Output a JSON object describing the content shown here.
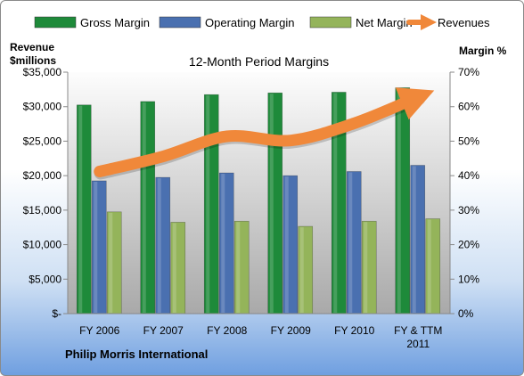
{
  "chart_data": {
    "type": "bar",
    "title": "12-Month Period Margins",
    "categories": [
      "FY 2006",
      "FY 2007",
      "FY 2008",
      "FY 2009",
      "FY 2010",
      "FY & TTM 2011"
    ],
    "series": [
      {
        "name": "Gross Margin",
        "axis": "right",
        "color": "#1e8a3a",
        "values": [
          60.5,
          61.5,
          63.5,
          64.0,
          64.2,
          65.5
        ]
      },
      {
        "name": "Operating Margin",
        "axis": "right",
        "color": "#4a70b0",
        "values": [
          38.5,
          39.5,
          40.8,
          40.0,
          41.2,
          43.0
        ]
      },
      {
        "name": "Net Margin",
        "axis": "right",
        "color": "#94b45a",
        "values": [
          29.5,
          26.5,
          26.8,
          25.3,
          26.8,
          27.5
        ]
      },
      {
        "name": "Revenues",
        "type": "line",
        "axis": "left",
        "color": "#f0883a",
        "values": [
          20600,
          22800,
          25700,
          25100,
          27600,
          31400
        ]
      }
    ],
    "ylabel_left": [
      "Revenue",
      "$millions"
    ],
    "ylabel_right": "Margin %",
    "ylim_left": [
      0,
      35000
    ],
    "ylim_right": [
      0,
      70
    ],
    "yticks_left": [
      "$-",
      "$5,000",
      "$10,000",
      "$15,000",
      "$20,000",
      "$25,000",
      "$30,000",
      "$35,000"
    ],
    "yticks_right": [
      "0%",
      "10%",
      "20%",
      "30%",
      "40%",
      "50%",
      "60%",
      "70%"
    ],
    "legend": "top",
    "grid": false
  },
  "footer": "Philip Morris International"
}
